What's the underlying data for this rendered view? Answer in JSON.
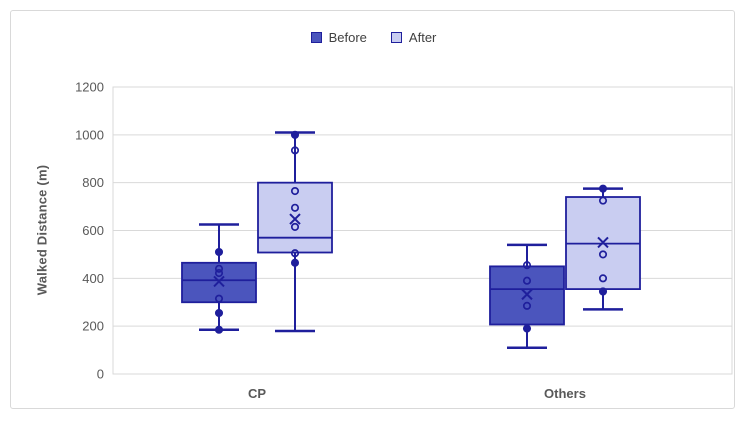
{
  "chart_data": {
    "type": "boxplot",
    "ylabel": "Walked Distance (m)",
    "categories": [
      "CP",
      "Others"
    ],
    "ylim": [
      0,
      1200
    ],
    "yticks": [
      0,
      200,
      400,
      600,
      800,
      1000,
      1200
    ],
    "grid": true,
    "legend_position": "top",
    "colors": {
      "navy_border": "#1f1f9c",
      "before_fill": "#4b55bd",
      "after_fill": "#c9cdf1",
      "gridline": "#d9d9d9",
      "plot_border": "#d9d9d9",
      "axis_text": "#595959",
      "legend_text": "#404040",
      "background": "#ffffff"
    },
    "series": [
      {
        "name": "Before",
        "fill": "#4b55bd",
        "border": "#1f1f9c",
        "boxes": [
          {
            "category": "CP",
            "min": 185,
            "q1": 300,
            "median": 392,
            "q3": 465,
            "max": 625,
            "mean": 387,
            "points": [
              {
                "value": 510,
                "style": "filled"
              },
              {
                "value": 440,
                "style": "open"
              },
              {
                "value": 422,
                "style": "open"
              },
              {
                "value": 315,
                "style": "open"
              },
              {
                "value": 255,
                "style": "filled"
              },
              {
                "value": 185,
                "style": "filled"
              }
            ]
          },
          {
            "category": "Others",
            "min": 110,
            "q1": 207,
            "median": 355,
            "q3": 450,
            "max": 540,
            "mean": 333,
            "points": [
              {
                "value": 455,
                "style": "open"
              },
              {
                "value": 390,
                "style": "open"
              },
              {
                "value": 285,
                "style": "open"
              },
              {
                "value": 190,
                "style": "filled"
              }
            ]
          }
        ]
      },
      {
        "name": "After",
        "fill": "#c9cdf1",
        "border": "#1f1f9c",
        "boxes": [
          {
            "category": "CP",
            "min": 180,
            "q1": 508,
            "median": 570,
            "q3": 800,
            "max": 1010,
            "mean": 648,
            "points": [
              {
                "value": 1000,
                "style": "filled"
              },
              {
                "value": 935,
                "style": "open"
              },
              {
                "value": 765,
                "style": "open"
              },
              {
                "value": 695,
                "style": "open"
              },
              {
                "value": 615,
                "style": "open"
              },
              {
                "value": 505,
                "style": "open"
              },
              {
                "value": 465,
                "style": "filled"
              }
            ]
          },
          {
            "category": "Others",
            "min": 270,
            "q1": 355,
            "median": 545,
            "q3": 740,
            "max": 775,
            "mean": 550,
            "points": [
              {
                "value": 775,
                "style": "filled"
              },
              {
                "value": 725,
                "style": "open"
              },
              {
                "value": 500,
                "style": "open"
              },
              {
                "value": 400,
                "style": "open"
              },
              {
                "value": 345,
                "style": "filled"
              }
            ]
          }
        ]
      }
    ]
  }
}
